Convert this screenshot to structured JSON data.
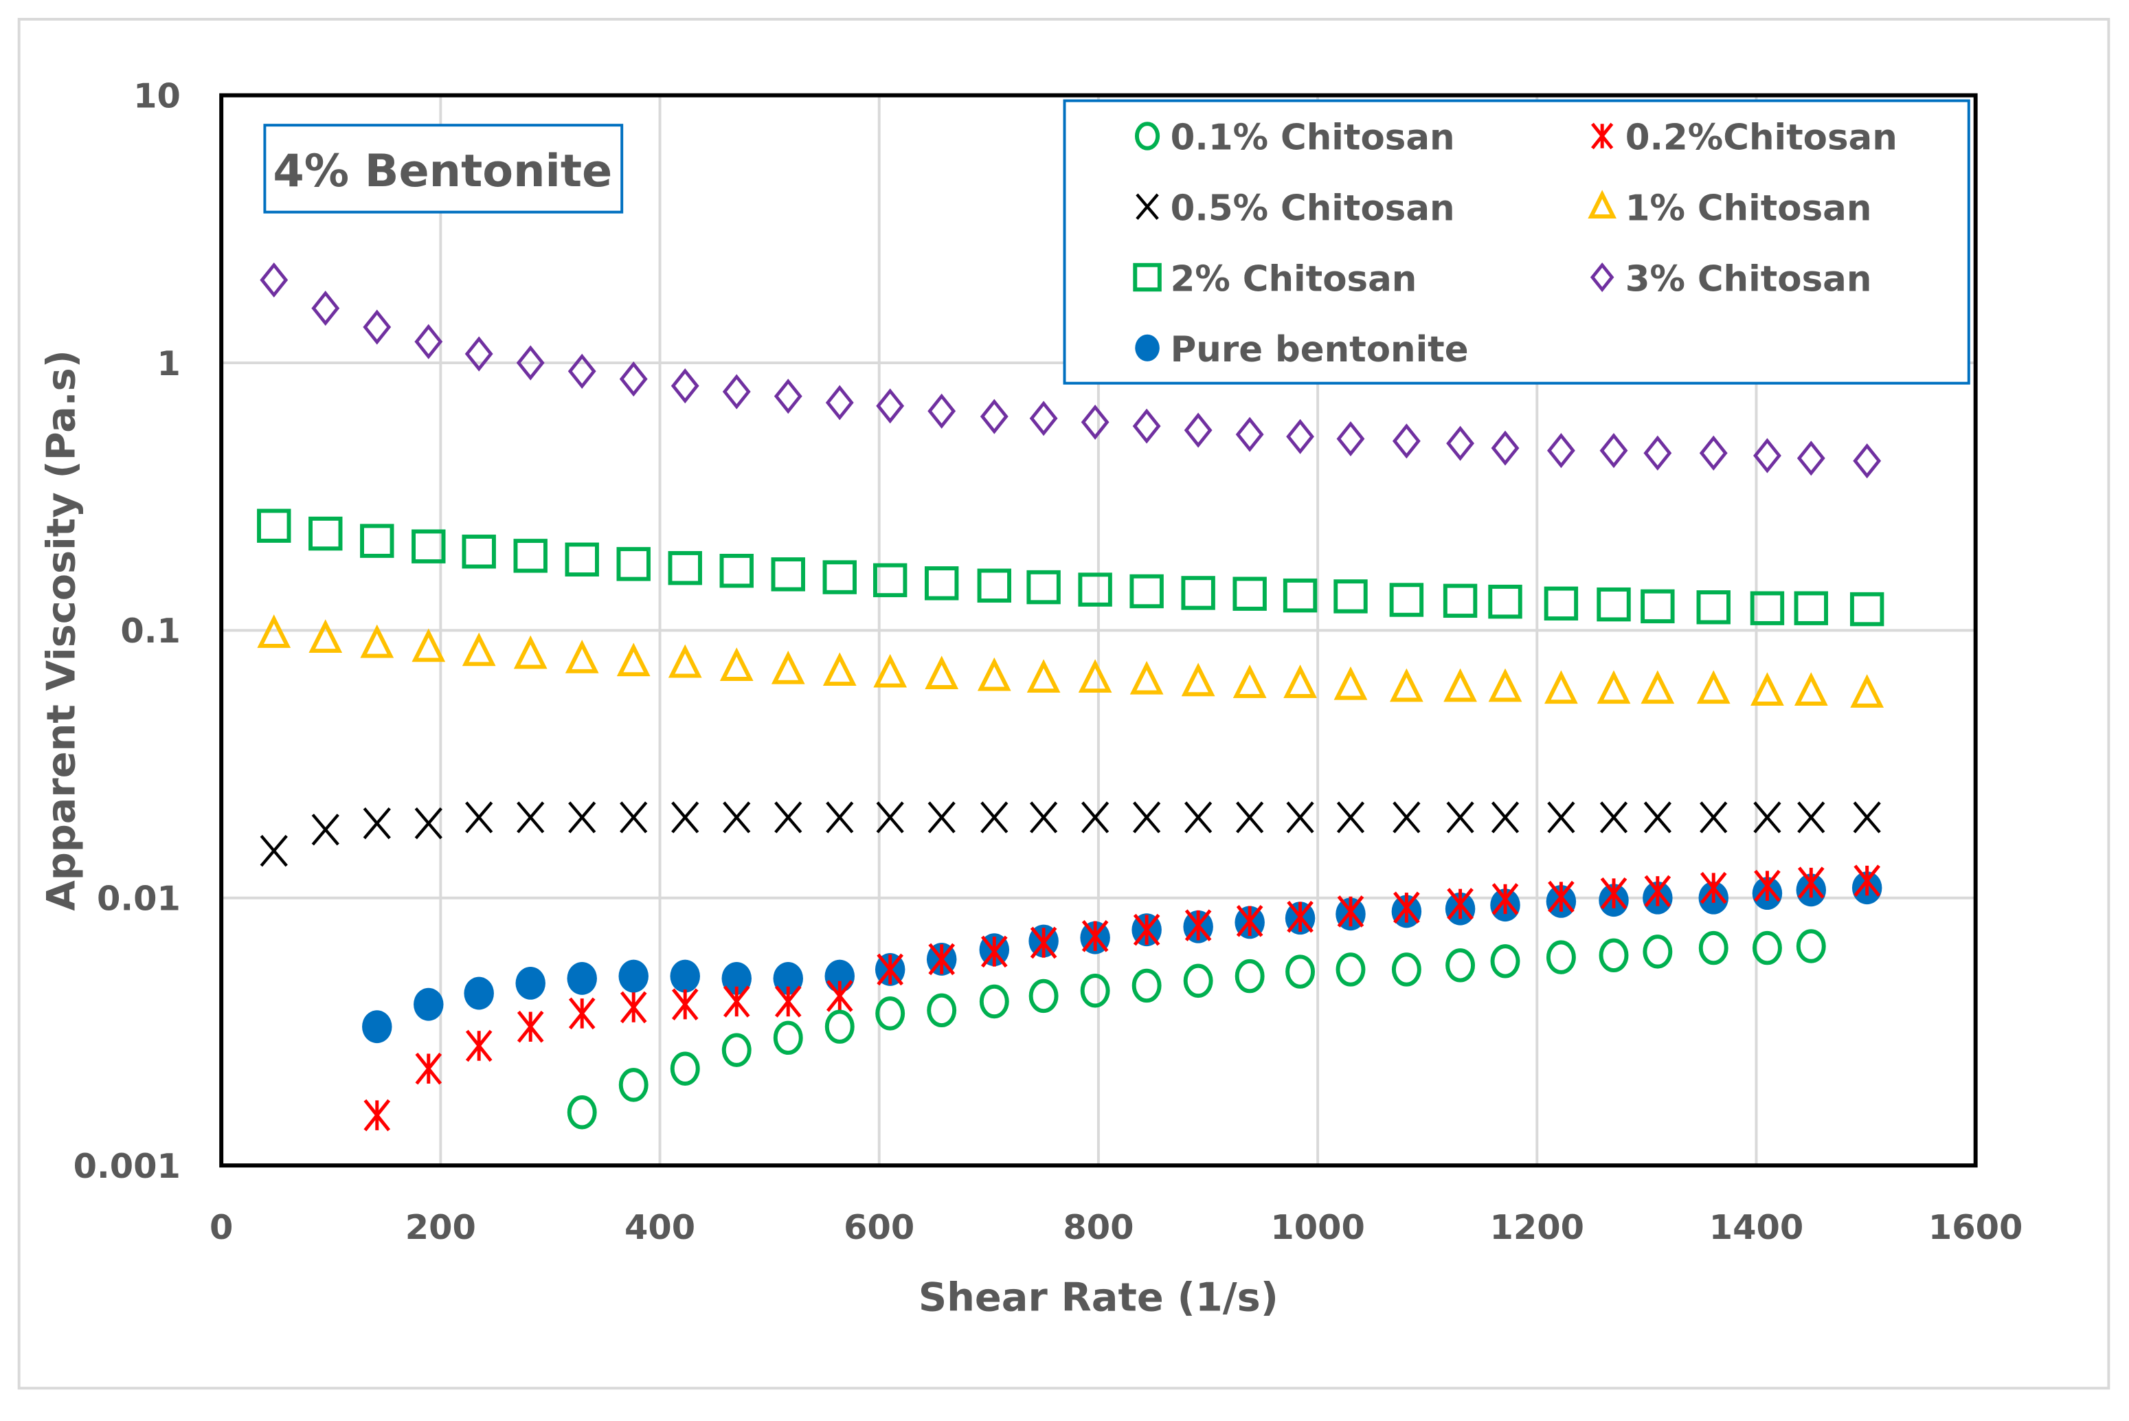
{
  "chart_data": {
    "type": "scatter",
    "title": "4% Bentonite",
    "xlabel": "Shear Rate (1/s)",
    "ylabel": "Apparent Viscosity (Pa.s)",
    "xlim": [
      0,
      1600
    ],
    "ylim": [
      0.001,
      10
    ],
    "yscale": "log",
    "grid": true,
    "legend_placement": "top-right",
    "xticks": [
      "0",
      "200",
      "400",
      "600",
      "800",
      "1000",
      "1200",
      "1400",
      "1600"
    ],
    "yticks": [
      "0.001",
      "0.01",
      "0.1",
      "1",
      "10"
    ],
    "x": [
      48,
      95,
      142,
      189,
      235,
      282,
      329,
      376,
      423,
      470,
      517,
      564,
      610,
      657,
      705,
      750,
      797,
      844,
      891,
      938,
      984,
      1030,
      1081,
      1130,
      1171,
      1222,
      1270,
      1310,
      1361,
      1410,
      1450,
      1501
    ],
    "series": [
      {
        "name": "0.1% Chitosan",
        "marker": "circle-open",
        "color": "#00b050",
        "values": [
          null,
          null,
          null,
          null,
          null,
          null,
          0.00158,
          0.002,
          0.0023,
          0.0027,
          0.003,
          0.0033,
          0.0037,
          0.0038,
          0.0041,
          0.0043,
          0.0045,
          0.0047,
          0.0049,
          0.0051,
          0.0053,
          0.0054,
          0.0054,
          0.0056,
          0.0058,
          0.006,
          0.0061,
          0.0063,
          0.0065,
          0.0065,
          0.0066,
          null
        ]
      },
      {
        "name": "0.2%Chitosan",
        "marker": "asterisk",
        "color": "#ff0000",
        "values": [
          null,
          null,
          0.00154,
          0.0023,
          0.0028,
          0.0033,
          0.0037,
          0.0039,
          0.004,
          0.0041,
          0.0041,
          0.0043,
          0.0054,
          0.0059,
          0.0063,
          0.0068,
          0.0072,
          0.0076,
          0.0079,
          0.0082,
          0.0085,
          0.0089,
          0.0092,
          0.0095,
          0.0099,
          0.0101,
          0.0104,
          0.0106,
          0.0109,
          0.0111,
          0.0114,
          0.0116
        ]
      },
      {
        "name": "0.5% Chitosan",
        "marker": "x",
        "color": "#000000",
        "values": [
          0.015,
          0.018,
          0.019,
          0.019,
          0.02,
          0.02,
          0.02,
          0.02,
          0.02,
          0.02,
          0.02,
          0.02,
          0.02,
          0.02,
          0.02,
          0.02,
          0.02,
          0.02,
          0.02,
          0.02,
          0.02,
          0.02,
          0.02,
          0.02,
          0.02,
          0.02,
          0.02,
          0.02,
          0.02,
          0.02,
          0.02,
          0.02
        ]
      },
      {
        "name": "1% Chitosan",
        "marker": "triangle-open",
        "color": "#ffc000",
        "values": [
          0.097,
          0.093,
          0.089,
          0.086,
          0.083,
          0.081,
          0.078,
          0.076,
          0.075,
          0.073,
          0.071,
          0.07,
          0.069,
          0.068,
          0.067,
          0.066,
          0.066,
          0.065,
          0.064,
          0.063,
          0.063,
          0.062,
          0.061,
          0.061,
          0.061,
          0.06,
          0.06,
          0.06,
          0.06,
          0.059,
          0.059,
          0.058
        ]
      },
      {
        "name": "2% Chitosan",
        "marker": "square-open",
        "color": "#00b050",
        "values": [
          0.246,
          0.23,
          0.216,
          0.206,
          0.197,
          0.19,
          0.184,
          0.177,
          0.171,
          0.167,
          0.162,
          0.158,
          0.154,
          0.15,
          0.147,
          0.145,
          0.142,
          0.14,
          0.138,
          0.137,
          0.135,
          0.134,
          0.13,
          0.129,
          0.128,
          0.126,
          0.125,
          0.123,
          0.122,
          0.121,
          0.121,
          0.12
        ]
      },
      {
        "name": "3% Chitosan",
        "marker": "diamond-open",
        "color": "#7030a0",
        "values": [
          2.04,
          1.6,
          1.36,
          1.2,
          1.08,
          1.0,
          0.93,
          0.87,
          0.82,
          0.78,
          0.75,
          0.71,
          0.69,
          0.66,
          0.63,
          0.62,
          0.6,
          0.58,
          0.56,
          0.54,
          0.53,
          0.52,
          0.51,
          0.5,
          0.48,
          0.47,
          0.47,
          0.46,
          0.46,
          0.45,
          0.44,
          0.43
        ]
      },
      {
        "name": "Pure bentonite",
        "marker": "circle-filled",
        "color": "#0070c0",
        "values": [
          null,
          null,
          0.0033,
          0.004,
          0.0044,
          0.0048,
          0.005,
          0.0051,
          0.0051,
          0.005,
          0.005,
          0.0051,
          0.0054,
          0.0059,
          0.0064,
          0.0069,
          0.0071,
          0.0076,
          0.0078,
          0.0081,
          0.0084,
          0.0087,
          0.0089,
          0.0091,
          0.0094,
          0.0097,
          0.0098,
          0.01,
          0.01,
          0.0104,
          0.0107,
          0.0109
        ]
      }
    ]
  }
}
